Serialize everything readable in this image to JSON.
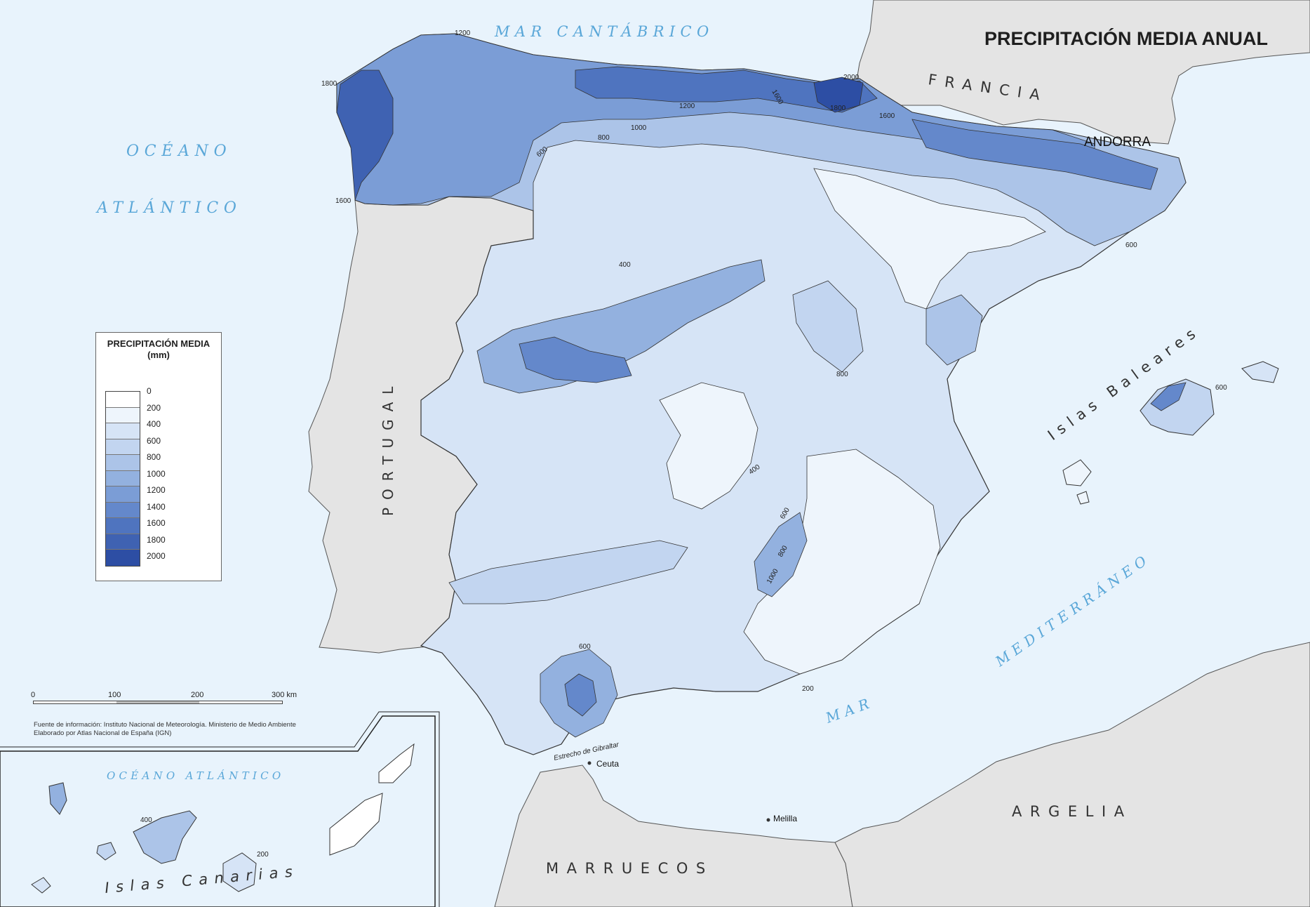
{
  "title": "PRECIPITACIÓN MEDIA ANUAL",
  "seas": {
    "cantabrico": "MAR CANTÁBRICO",
    "oceano": "OCÉANO",
    "atlantico": "ATLÁNTICO",
    "mediterraneo": "MEDITERRÁNEO",
    "mar": "MAR",
    "oceano_atlantico_canarias": "OCÉANO ATLÁNTICO"
  },
  "countries": {
    "francia": "FRANCIA",
    "andorra": "ANDORRA",
    "portugal": "PORTUGAL",
    "marruecos": "MARRUECOS",
    "argelia": "ARGELIA"
  },
  "islands": {
    "baleares": "Islas Baleares",
    "canarias": "Islas Canarias"
  },
  "places": {
    "estrecho": "Estrecho de Gibraltar",
    "ceuta": "Ceuta",
    "melilla": "Melilla"
  },
  "isolines": [
    "1200",
    "1800",
    "1600",
    "2000",
    "1800",
    "1600",
    "1600",
    "1200",
    "1000",
    "800",
    "600",
    "400",
    "800",
    "400",
    "600",
    "800",
    "1000",
    "600",
    "200",
    "600",
    "600",
    "400",
    "200"
  ],
  "legend": {
    "title": "PRECIPITACIÓN MEDIA",
    "unit": "(mm)",
    "classes": [
      "0",
      "200",
      "400",
      "600",
      "800",
      "1000",
      "1200",
      "1400",
      "1600",
      "1800",
      "2000"
    ],
    "colors": [
      "#ffffff",
      "#eef5fc",
      "#d6e4f6",
      "#c2d5f0",
      "#acc4e8",
      "#93b1df",
      "#7b9dd6",
      "#6488cb",
      "#4f74bf",
      "#3f62b2",
      "#2d4ea4"
    ]
  },
  "scale": {
    "labels": [
      "0",
      "100",
      "200",
      "300 km"
    ]
  },
  "source": {
    "line1": "Fuente de información: Instituto Nacional de Meteorología. Ministerio de Medio Ambiente",
    "line2": "Elaborado por Atlas Nacional de España (IGN)"
  },
  "colors": {
    "sea": "#e8f3fc",
    "foreign_land": "#e4e4e4",
    "sea_label": "#5aa7d8"
  }
}
